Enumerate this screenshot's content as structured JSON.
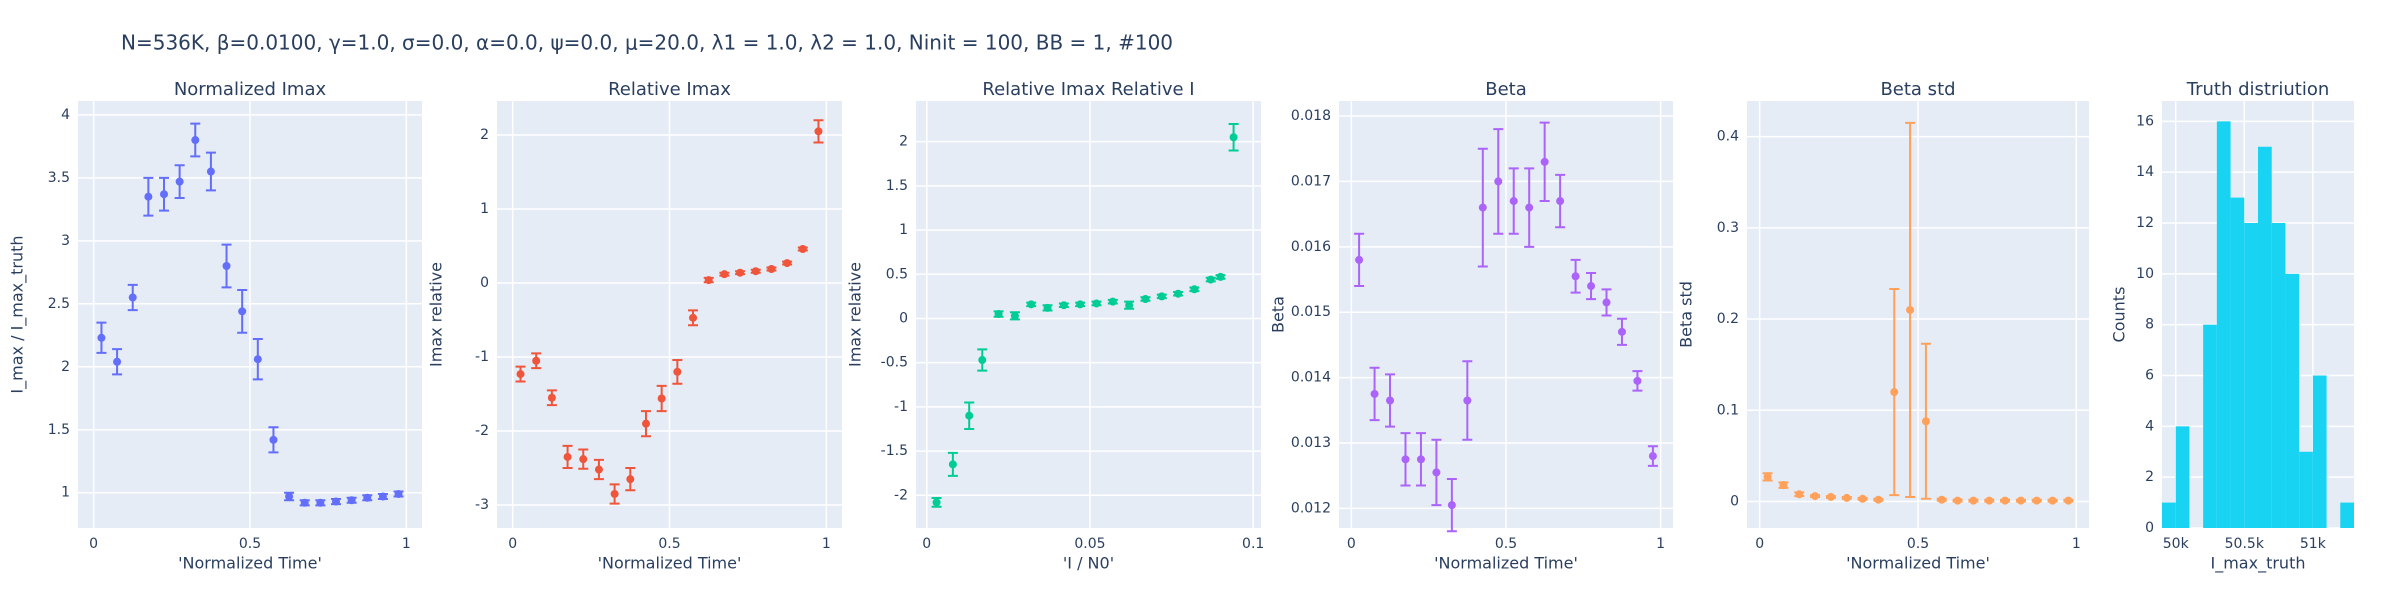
{
  "title": "N=536K, β=0.0100, γ=1.0, σ=0.0,  α=0.0, ψ=0.0, μ=20.0, λ1 = 1.0, λ2 = 1.0, Ninit = 100, BB = 1, #100",
  "chart_data": [
    {
      "type": "scatter",
      "title": "Normalized Imax",
      "xlabel": "'Normalized Time'",
      "ylabel": "I_max / I_max_truth",
      "color": "#636efa",
      "x": [
        0.025,
        0.075,
        0.125,
        0.175,
        0.225,
        0.275,
        0.325,
        0.375,
        0.425,
        0.475,
        0.525,
        0.575,
        0.625,
        0.675,
        0.725,
        0.775,
        0.825,
        0.875,
        0.925,
        0.975
      ],
      "values": [
        2.23,
        2.04,
        2.55,
        3.35,
        3.37,
        3.47,
        3.8,
        3.55,
        2.8,
        2.44,
        2.06,
        1.42,
        0.97,
        0.92,
        0.92,
        0.93,
        0.94,
        0.96,
        0.97,
        0.99
      ],
      "errors": [
        0.12,
        0.1,
        0.1,
        0.15,
        0.13,
        0.13,
        0.13,
        0.15,
        0.17,
        0.17,
        0.16,
        0.1,
        0.03,
        0.02,
        0.02,
        0.02,
        0.02,
        0.02,
        0.02,
        0.02
      ],
      "xlim": [
        -0.05,
        1.05
      ],
      "ylim": [
        0.72,
        4.11
      ],
      "xticks": [
        0,
        0.5,
        1
      ],
      "yticks": [
        1,
        1.5,
        2,
        2.5,
        3,
        3.5,
        4
      ],
      "grid": true
    },
    {
      "type": "scatter",
      "title": "Relative Imax",
      "xlabel": "'Normalized Time'",
      "ylabel": "Imax relative",
      "color": "#EF553B",
      "x": [
        0.025,
        0.075,
        0.125,
        0.175,
        0.225,
        0.275,
        0.325,
        0.375,
        0.425,
        0.475,
        0.525,
        0.575,
        0.625,
        0.675,
        0.725,
        0.775,
        0.825,
        0.875,
        0.925,
        0.975
      ],
      "values": [
        -1.23,
        -1.05,
        -1.55,
        -2.35,
        -2.38,
        -2.52,
        -2.85,
        -2.65,
        -1.9,
        -1.56,
        -1.2,
        -0.47,
        0.04,
        0.12,
        0.14,
        0.16,
        0.19,
        0.27,
        0.46,
        2.05
      ],
      "errors": [
        0.1,
        0.1,
        0.1,
        0.15,
        0.13,
        0.13,
        0.13,
        0.15,
        0.17,
        0.17,
        0.16,
        0.1,
        0.03,
        0.02,
        0.02,
        0.02,
        0.02,
        0.02,
        0.02,
        0.15
      ],
      "xlim": [
        -0.05,
        1.05
      ],
      "ylim": [
        -3.31,
        2.46
      ],
      "xticks": [
        0,
        0.5,
        1
      ],
      "yticks": [
        -3,
        -2,
        -1,
        0,
        1,
        2
      ],
      "grid": true
    },
    {
      "type": "scatter",
      "title": "Relative Imax Relative I",
      "xlabel": "'I / N0'",
      "ylabel": "Imax relative",
      "color": "#00cc96",
      "x": [
        0.003,
        0.008,
        0.013,
        0.017,
        0.022,
        0.027,
        0.032,
        0.037,
        0.042,
        0.047,
        0.052,
        0.057,
        0.062,
        0.067,
        0.072,
        0.077,
        0.082,
        0.087,
        0.09,
        0.094
      ],
      "values": [
        -2.08,
        -1.65,
        -1.1,
        -0.47,
        0.05,
        0.03,
        0.16,
        0.12,
        0.15,
        0.16,
        0.17,
        0.19,
        0.15,
        0.22,
        0.25,
        0.28,
        0.33,
        0.44,
        0.47,
        2.05
      ],
      "errors": [
        0.05,
        0.13,
        0.15,
        0.12,
        0.03,
        0.04,
        0.02,
        0.03,
        0.02,
        0.02,
        0.02,
        0.02,
        0.04,
        0.02,
        0.02,
        0.02,
        0.02,
        0.02,
        0.02,
        0.15
      ],
      "xlim": [
        -0.0033,
        0.1024
      ],
      "ylim": [
        -2.37,
        2.46
      ],
      "xticks": [
        0,
        0.05,
        0.1
      ],
      "yticks": [
        -2,
        -1.5,
        -1,
        -0.5,
        0,
        0.5,
        1,
        1.5,
        2
      ],
      "grid": true
    },
    {
      "type": "scatter",
      "title": "Beta",
      "xlabel": "'Normalized Time'",
      "ylabel": "Beta",
      "color": "#ab63fa",
      "x": [
        0.025,
        0.075,
        0.125,
        0.175,
        0.225,
        0.275,
        0.325,
        0.375,
        0.425,
        0.475,
        0.525,
        0.575,
        0.625,
        0.675,
        0.725,
        0.775,
        0.825,
        0.875,
        0.925,
        0.975
      ],
      "values": [
        0.0158,
        0.01375,
        0.01365,
        0.01275,
        0.01275,
        0.01255,
        0.01205,
        0.01365,
        0.0166,
        0.017,
        0.0167,
        0.0166,
        0.0173,
        0.0167,
        0.01555,
        0.0154,
        0.01515,
        0.0147,
        0.01395,
        0.0128
      ],
      "errors": [
        0.0004,
        0.0004,
        0.0004,
        0.0004,
        0.0004,
        0.0005,
        0.0004,
        0.0006,
        0.0009,
        0.0008,
        0.0005,
        0.0006,
        0.0006,
        0.0004,
        0.00025,
        0.0002,
        0.0002,
        0.0002,
        0.00015,
        0.00015
      ],
      "xlim": [
        -0.04,
        1.04
      ],
      "ylim": [
        0.0117,
        0.01823
      ],
      "xticks": [
        0,
        0.5,
        1
      ],
      "yticks": [
        0.012,
        0.013,
        0.014,
        0.015,
        0.016,
        0.017,
        0.018
      ],
      "grid": true
    },
    {
      "type": "scatter",
      "title": "Beta std",
      "xlabel": "'Normalized Time'",
      "ylabel": "Beta std",
      "color": "#FFA15A",
      "x": [
        0.025,
        0.075,
        0.125,
        0.175,
        0.225,
        0.275,
        0.325,
        0.375,
        0.425,
        0.475,
        0.525,
        0.575,
        0.625,
        0.675,
        0.725,
        0.775,
        0.825,
        0.875,
        0.925,
        0.975
      ],
      "values": [
        0.027,
        0.018,
        0.008,
        0.006,
        0.005,
        0.004,
        0.003,
        0.002,
        0.12,
        0.21,
        0.088,
        0.002,
        0.001,
        0.001,
        0.001,
        0.001,
        0.001,
        0.001,
        0.001,
        0.001
      ],
      "errors": [
        0.004,
        0.003,
        0.002,
        0.001,
        0.001,
        0.001,
        0.001,
        0.001,
        0.113,
        0.205,
        0.085,
        0.001,
        0.001,
        0.001,
        0.001,
        0.001,
        0.001,
        0.001,
        0.001,
        0.001
      ],
      "xlim": [
        -0.04,
        1.04
      ],
      "ylim": [
        -0.029,
        0.439
      ],
      "xticks": [
        0,
        0.5,
        1
      ],
      "yticks": [
        0,
        0.1,
        0.2,
        0.3,
        0.4
      ],
      "grid": true
    },
    {
      "type": "histogram",
      "title": "Truth distriution",
      "xlabel": "I_max_truth",
      "ylabel": "Counts",
      "color": "#19d3f3",
      "bins": [
        49900,
        50000,
        50100,
        50200,
        50300,
        50400,
        50500,
        50600,
        50700,
        50800,
        50900,
        51000,
        51100,
        51200,
        51300
      ],
      "values": [
        1,
        4,
        0,
        8,
        16,
        13,
        12,
        15,
        12,
        10,
        3,
        6,
        0,
        1
      ],
      "xlim": [
        49900,
        51300
      ],
      "ylim": [
        0,
        16.8
      ],
      "xticks": [
        {
          "value": 50000,
          "label": "50k"
        },
        {
          "value": 50500,
          "label": "50.5k"
        },
        {
          "value": 51000,
          "label": "51k"
        }
      ],
      "yticks": [
        0,
        2,
        4,
        6,
        8,
        10,
        12,
        14,
        16
      ],
      "grid": true
    }
  ]
}
